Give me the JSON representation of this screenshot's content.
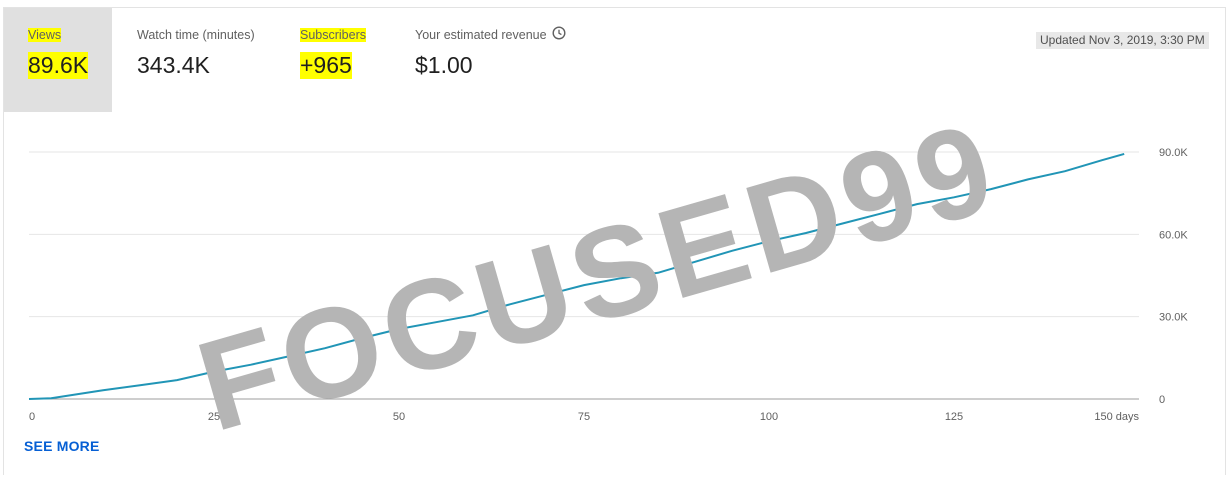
{
  "metrics": {
    "views": {
      "label": "Views",
      "value": "89.6K"
    },
    "watch_time": {
      "label": "Watch time (minutes)",
      "value": "343.4K"
    },
    "subscribers": {
      "label": "Subscribers",
      "value": "+965"
    },
    "revenue": {
      "label": "Your estimated revenue",
      "value": "$1.00",
      "icon": "clock-icon"
    }
  },
  "updated": "Updated Nov 3, 2019, 3:30 PM",
  "see_more": "SEE MORE",
  "watermark": "FOCUSED99",
  "colors": {
    "line": "#2195b6",
    "highlight": "#ffff00",
    "link": "#065fd4",
    "active_tab": "#e0e0e0"
  },
  "chart_data": {
    "type": "line",
    "title": "",
    "xlabel": "",
    "ylabel": "",
    "x_ticks": [
      {
        "value": 0,
        "label": "0"
      },
      {
        "value": 25,
        "label": "25"
      },
      {
        "value": 50,
        "label": "50"
      },
      {
        "value": 75,
        "label": "75"
      },
      {
        "value": 100,
        "label": "100"
      },
      {
        "value": 125,
        "label": "125"
      },
      {
        "value": 150,
        "label": "150 days"
      }
    ],
    "y_ticks": [
      {
        "value": 0,
        "label": "0"
      },
      {
        "value": 30000,
        "label": "30.0K"
      },
      {
        "value": 60000,
        "label": "60.0K"
      },
      {
        "value": 90000,
        "label": "90.0K"
      }
    ],
    "xlim": [
      0,
      150
    ],
    "ylim": [
      0,
      90000
    ],
    "grid": true,
    "series": [
      {
        "name": "Views",
        "x": [
          0,
          3,
          10,
          15,
          20,
          25,
          30,
          35,
          40,
          45,
          50,
          55,
          60,
          65,
          70,
          75,
          80,
          85,
          90,
          95,
          100,
          105,
          110,
          115,
          120,
          125,
          130,
          135,
          140,
          145,
          148
        ],
        "values": [
          0,
          300,
          3200,
          5000,
          6900,
          10000,
          12500,
          15500,
          18500,
          22200,
          25500,
          28000,
          30500,
          34500,
          38000,
          41500,
          44000,
          46000,
          50000,
          54000,
          57500,
          60500,
          64000,
          67500,
          71000,
          73500,
          76500,
          80000,
          83000,
          87000,
          89300
        ]
      }
    ]
  }
}
